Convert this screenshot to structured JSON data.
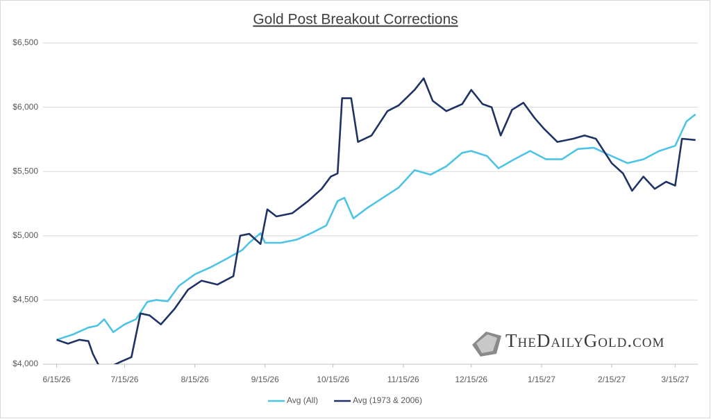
{
  "chart_data": {
    "type": "line",
    "title": "Gold Post Breakout Corrections",
    "watermark": "TheDailyGold.com",
    "xlim": [
      "6/9/26",
      "3/25/27"
    ],
    "xticks": [
      "6/15/26",
      "7/15/26",
      "8/15/26",
      "9/15/26",
      "10/15/26",
      "11/15/26",
      "12/15/26",
      "1/15/27",
      "2/15/27",
      "3/15/27"
    ],
    "ylim": [
      4000,
      6500
    ],
    "yticks": [
      {
        "value": 4000,
        "label": "$4,000"
      },
      {
        "value": 4500,
        "label": "$4,500"
      },
      {
        "value": 5000,
        "label": "$5,000"
      },
      {
        "value": 5500,
        "label": "$5,500"
      },
      {
        "value": 6000,
        "label": "$6,000"
      },
      {
        "value": 6500,
        "label": "$6,500"
      }
    ],
    "grid": true,
    "legend": "bottom",
    "series": [
      {
        "name": "Avg (All)",
        "color": "#4dc3e6",
        "x": [
          "6/15/26",
          "6/22/26",
          "6/29/26",
          "7/3/26",
          "7/6/26",
          "7/10/26",
          "7/15/26",
          "7/20/26",
          "7/25/26",
          "7/29/26",
          "8/3/26",
          "8/8/26",
          "8/15/26",
          "8/22/26",
          "8/29/26",
          "9/5/26",
          "9/8/26",
          "9/13/26",
          "9/15/26",
          "9/22/26",
          "9/29/26",
          "10/6/26",
          "10/12/26",
          "10/17/26",
          "10/20/26",
          "10/24/26",
          "10/30/26",
          "11/6/26",
          "11/13/26",
          "11/20/26",
          "11/27/26",
          "12/4/26",
          "12/11/26",
          "12/15/26",
          "12/22/26",
          "12/27/26",
          "1/3/27",
          "1/10/27",
          "1/17/27",
          "1/24/27",
          "1/31/27",
          "2/7/27",
          "2/15/27",
          "2/22/27",
          "3/1/27",
          "3/8/27",
          "3/15/27",
          "3/20/27",
          "3/24/27"
        ],
        "values": [
          4190,
          4230,
          4285,
          4300,
          4350,
          4250,
          4310,
          4350,
          4485,
          4500,
          4490,
          4610,
          4700,
          4755,
          4820,
          4890,
          4945,
          5020,
          4945,
          4945,
          4970,
          5025,
          5080,
          5270,
          5295,
          5135,
          5215,
          5295,
          5375,
          5510,
          5475,
          5540,
          5645,
          5660,
          5620,
          5525,
          5595,
          5660,
          5595,
          5595,
          5675,
          5685,
          5620,
          5565,
          5595,
          5660,
          5700,
          5890,
          5945
        ]
      },
      {
        "name": "Avg (1973 & 2006)",
        "color": "#1f3266",
        "x": [
          "6/15/26",
          "6/20/26",
          "6/25/26",
          "6/29/26",
          "7/1/26",
          "7/4/26",
          "7/8/26",
          "7/14/26",
          "7/18/26",
          "7/22/26",
          "7/26/26",
          "7/31/26",
          "8/6/26",
          "8/12/26",
          "8/18/26",
          "8/25/26",
          "9/1/26",
          "9/4/26",
          "9/8/26",
          "9/13/26",
          "9/16/26",
          "9/20/26",
          "9/27/26",
          "10/4/26",
          "10/10/26",
          "10/14/26",
          "10/17/26",
          "10/19/26",
          "10/23/26",
          "10/26/26",
          "11/1/26",
          "11/8/26",
          "11/13/26",
          "11/20/26",
          "11/24/26",
          "11/28/26",
          "12/4/26",
          "12/11/26",
          "12/15/26",
          "12/20/26",
          "12/24/26",
          "12/28/26",
          "1/2/27",
          "1/7/27",
          "1/12/27",
          "1/16/27",
          "1/22/27",
          "1/29/27",
          "2/3/27",
          "2/8/27",
          "2/15/27",
          "2/20/27",
          "2/24/27",
          "3/1/27",
          "3/6/27",
          "3/11/27",
          "3/15/27",
          "3/18/27",
          "3/24/27"
        ],
        "values": [
          4190,
          4160,
          4190,
          4180,
          4080,
          3975,
          3975,
          4025,
          4055,
          4395,
          4380,
          4310,
          4430,
          4580,
          4650,
          4620,
          4685,
          5000,
          5015,
          4935,
          5205,
          5150,
          5175,
          5270,
          5365,
          5460,
          5485,
          6070,
          6070,
          5730,
          5780,
          5970,
          6015,
          6135,
          6225,
          6050,
          5970,
          6025,
          6135,
          6025,
          6000,
          5780,
          5980,
          6035,
          5915,
          5835,
          5730,
          5755,
          5780,
          5755,
          5565,
          5485,
          5350,
          5460,
          5365,
          5420,
          5390,
          5755,
          5745
        ]
      }
    ]
  }
}
